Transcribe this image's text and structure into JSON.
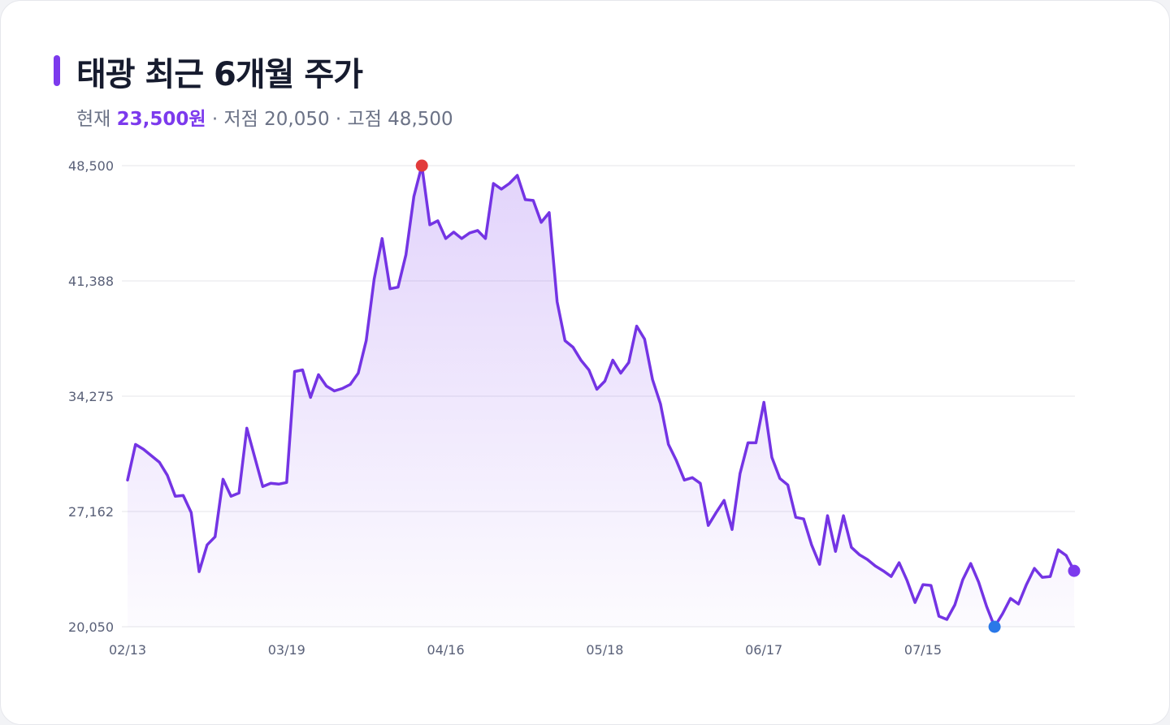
{
  "colors": {
    "accent": "#7c3aed",
    "line": "#7434e4",
    "high_marker": "#e23b3b",
    "low_marker": "#2a78e8",
    "current_marker": "#7c3aed"
  },
  "header": {
    "title": "태광 최근 6개월 주가",
    "current_label": "현재",
    "current_value": "23,500원",
    "separator_low": " · 저점 20,050",
    "separator_high": " · 고점 48,500"
  },
  "chart_data": {
    "type": "area",
    "title": "태광 최근 6개월 주가",
    "y_ticks": [
      "20,050",
      "27,162",
      "34,275",
      "41,388",
      "48,500"
    ],
    "y_tick_values": [
      20050,
      27162,
      34275,
      41388,
      48500
    ],
    "ylim": [
      20050,
      48500
    ],
    "x_ticks": [
      "02/13",
      "03/19",
      "04/16",
      "05/18",
      "06/17",
      "07/15"
    ],
    "x_tick_index": [
      0,
      20,
      40,
      60,
      80,
      100
    ],
    "grid": true,
    "high": 48500,
    "low": 20050,
    "current": 23500,
    "values": [
      29100,
      31300,
      31000,
      30600,
      30200,
      29400,
      28100,
      28150,
      27100,
      23450,
      25100,
      25600,
      29150,
      28100,
      28300,
      32300,
      30500,
      28700,
      28900,
      28850,
      28950,
      35800,
      35900,
      34200,
      35600,
      34900,
      34600,
      34750,
      35000,
      35700,
      37700,
      41500,
      44000,
      40900,
      41000,
      43000,
      46600,
      48500,
      44850,
      45100,
      44000,
      44400,
      44000,
      44350,
      44500,
      44000,
      47400,
      47050,
      47400,
      47900,
      46400,
      46350,
      45000,
      45600,
      40100,
      37700,
      37300,
      36500,
      35900,
      34700,
      35200,
      36500,
      35700,
      36350,
      38600,
      37800,
      35300,
      33800,
      31300,
      30300,
      29100,
      29250,
      28900,
      26300,
      27100,
      27850,
      26050,
      29500,
      31400,
      31400,
      33900,
      30500,
      29200,
      28800,
      26800,
      26700,
      25100,
      23900,
      26900,
      24700,
      26900,
      24950,
      24500,
      24200,
      23800,
      23500,
      23150,
      24000,
      22900,
      21550,
      22650,
      22600,
      20700,
      20500,
      21400,
      22950,
      23950,
      22800,
      21300,
      20050,
      20850,
      21800,
      21450,
      22650,
      23650,
      23100,
      23150,
      24800,
      24450,
      23500
    ]
  }
}
